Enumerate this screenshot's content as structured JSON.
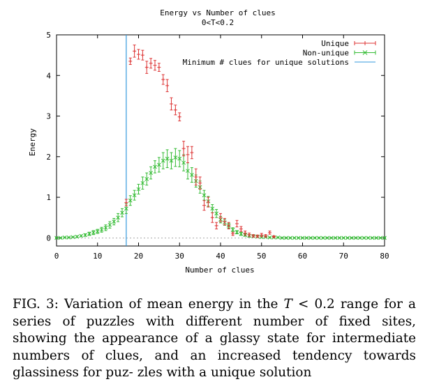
{
  "chart_data": {
    "type": "scatter",
    "title": "Energy vs Number of clues",
    "subtitle": "0<T<0.2",
    "xlabel": "Number of clues",
    "ylabel": "Energy",
    "xlim": [
      0,
      80
    ],
    "ylim": [
      -0.2,
      5
    ],
    "xticks": [
      "0",
      "10",
      "20",
      "30",
      "40",
      "50",
      "60",
      "70",
      "80"
    ],
    "yticks": [
      "0",
      "1",
      "2",
      "3",
      "4",
      "5"
    ],
    "legend_position": "top-right",
    "vline": {
      "name": "Minimum # clues for unique solutions",
      "x": 17,
      "color": "#3399dd"
    },
    "series": [
      {
        "name": "Unique",
        "color": "#dd3333",
        "marker": "plus",
        "x": [
          17,
          18,
          19,
          20,
          21,
          22,
          23,
          24,
          25,
          26,
          27,
          28,
          29,
          30,
          31,
          32,
          33,
          34,
          35,
          36,
          37,
          38,
          39,
          40,
          41,
          42,
          43,
          44,
          45,
          46,
          47,
          48,
          49,
          50,
          51,
          52,
          53
        ],
        "y": [
          0.87,
          4.35,
          4.6,
          4.52,
          4.5,
          4.2,
          4.3,
          4.25,
          4.2,
          3.9,
          3.75,
          3.3,
          3.15,
          2.98,
          2.2,
          2.05,
          2.1,
          1.5,
          1.35,
          0.8,
          0.88,
          0.5,
          0.3,
          0.5,
          0.4,
          0.3,
          0.1,
          0.35,
          0.22,
          0.12,
          0.08,
          0.05,
          0.04,
          0.07,
          0.05,
          0.13,
          0.03
        ],
        "err": [
          0.08,
          0.08,
          0.15,
          0.12,
          0.12,
          0.15,
          0.12,
          0.12,
          0.1,
          0.12,
          0.15,
          0.15,
          0.12,
          0.1,
          0.18,
          0.2,
          0.15,
          0.2,
          0.15,
          0.12,
          0.12,
          0.12,
          0.08,
          0.1,
          0.08,
          0.08,
          0.04,
          0.08,
          0.06,
          0.05,
          0.04,
          0.03,
          0.03,
          0.04,
          0.03,
          0.04,
          0.02
        ]
      },
      {
        "name": "Non-unique",
        "color": "#33bb33",
        "marker": "x",
        "x": [
          0,
          1,
          2,
          3,
          4,
          5,
          6,
          7,
          8,
          9,
          10,
          11,
          12,
          13,
          14,
          15,
          16,
          17,
          18,
          19,
          20,
          21,
          22,
          23,
          24,
          25,
          26,
          27,
          28,
          29,
          30,
          31,
          32,
          33,
          34,
          35,
          36,
          37,
          38,
          39,
          40,
          41,
          42,
          43,
          44,
          45,
          46,
          47,
          48,
          49,
          50,
          51,
          52,
          53,
          54,
          55,
          56,
          57,
          58,
          59,
          60,
          61,
          62,
          63,
          64,
          65,
          66,
          67,
          68,
          69,
          70,
          71,
          72,
          73,
          74,
          75,
          76,
          77,
          78,
          79,
          80
        ],
        "y": [
          0.0,
          0.0,
          0.01,
          0.01,
          0.02,
          0.03,
          0.05,
          0.07,
          0.1,
          0.13,
          0.16,
          0.2,
          0.25,
          0.32,
          0.4,
          0.5,
          0.62,
          0.72,
          0.92,
          1.05,
          1.2,
          1.35,
          1.45,
          1.6,
          1.75,
          1.8,
          1.9,
          1.95,
          1.9,
          1.98,
          1.95,
          1.85,
          1.65,
          1.55,
          1.4,
          1.25,
          1.05,
          0.9,
          0.72,
          0.6,
          0.45,
          0.38,
          0.3,
          0.2,
          0.14,
          0.1,
          0.07,
          0.05,
          0.04,
          0.03,
          0.02,
          0.02,
          0.01,
          0.01,
          0.01,
          0.0,
          0.0,
          0.0,
          0.0,
          0.0,
          0.0,
          0.0,
          0.0,
          0.0,
          0.0,
          0.0,
          0.0,
          0.0,
          0.0,
          0.0,
          0.0,
          0.0,
          0.0,
          0.0,
          0.0,
          0.0,
          0.0,
          0.0,
          0.0,
          0.0,
          0.0
        ],
        "err": [
          0.01,
          0.01,
          0.01,
          0.01,
          0.01,
          0.02,
          0.02,
          0.03,
          0.04,
          0.05,
          0.05,
          0.06,
          0.07,
          0.08,
          0.08,
          0.1,
          0.1,
          0.12,
          0.12,
          0.12,
          0.12,
          0.15,
          0.15,
          0.15,
          0.15,
          0.18,
          0.2,
          0.22,
          0.2,
          0.22,
          0.2,
          0.2,
          0.2,
          0.18,
          0.15,
          0.15,
          0.12,
          0.12,
          0.1,
          0.1,
          0.08,
          0.07,
          0.06,
          0.05,
          0.04,
          0.04,
          0.03,
          0.03,
          0.02,
          0.02,
          0.02,
          0.01,
          0.01,
          0.01,
          0.01,
          0.01,
          0.01,
          0.01,
          0.01,
          0.01,
          0.01,
          0.01,
          0.01,
          0.01,
          0.01,
          0.01,
          0.01,
          0.01,
          0.01,
          0.01,
          0.01,
          0.01,
          0.01,
          0.01,
          0.01,
          0.01,
          0.01,
          0.01,
          0.01,
          0.01,
          0.01
        ]
      }
    ]
  },
  "caption": {
    "fig_label": "FIG. 3:",
    "text_before": "Variation of mean energy in the ",
    "math_var": "T",
    "math_rel": " < 0.2",
    "text_after_line1": " range for a",
    "line2": "series of puzzles with different number of fixed sites, showing",
    "line3": "the appearance of a glassy state for intermediate numbers of",
    "line4": "clues, and an increased tendency towards glassiness for puz-",
    "line5": "zles with a unique solution"
  }
}
